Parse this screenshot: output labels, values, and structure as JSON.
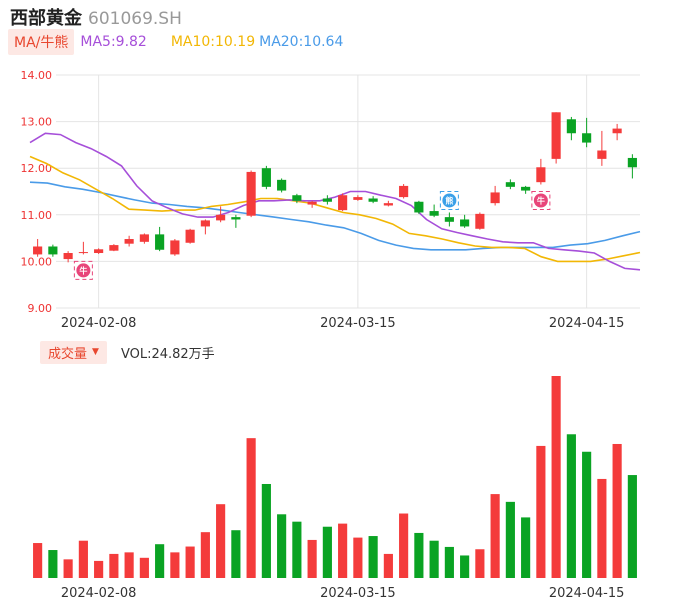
{
  "header": {
    "name": "西部黄金",
    "code": "601069.SH"
  },
  "ma": {
    "button_label": "MA/牛熊",
    "ma5": "MA5:9.82",
    "ma10": "MA10:10.19",
    "ma20": "MA20:10.64",
    "colors": {
      "ma5": "#a64fd9",
      "ma10": "#f2b705",
      "ma20": "#4a9be8"
    }
  },
  "volume": {
    "button_label": "成交量",
    "value_text": "VOL:24.82万手"
  },
  "colors": {
    "up": "#f43b3b",
    "down": "#0aa323",
    "bull_badge": "#e8457a",
    "bear_badge": "#3aa0e8"
  },
  "chart_data": {
    "type": "candlestick",
    "ylim": [
      9.0,
      14.0
    ],
    "yticks": [
      "14.00",
      "13.00",
      "12.00",
      "11.00",
      "10.00",
      "9.00"
    ],
    "xticks": [
      {
        "index": 4,
        "label": "2024-02-08"
      },
      {
        "index": 21,
        "label": "2024-03-15"
      },
      {
        "index": 36,
        "label": "2024-04-15"
      }
    ],
    "candles": [
      {
        "o": 10.15,
        "c": 10.32,
        "h": 10.48,
        "l": 10.1,
        "v": 90
      },
      {
        "o": 10.32,
        "c": 10.15,
        "h": 10.36,
        "l": 10.1,
        "v": 72
      },
      {
        "o": 10.05,
        "c": 10.18,
        "h": 10.22,
        "l": 9.98,
        "v": 48
      },
      {
        "o": 10.2,
        "c": 10.2,
        "h": 10.42,
        "l": 10.15,
        "v": 96
      },
      {
        "o": 10.18,
        "c": 10.26,
        "h": 10.28,
        "l": 10.16,
        "v": 44
      },
      {
        "o": 10.23,
        "c": 10.35,
        "h": 10.37,
        "l": 10.22,
        "v": 62
      },
      {
        "o": 10.38,
        "c": 10.48,
        "h": 10.55,
        "l": 10.32,
        "v": 66
      },
      {
        "o": 10.42,
        "c": 10.58,
        "h": 10.6,
        "l": 10.38,
        "v": 52
      },
      {
        "o": 10.58,
        "c": 10.25,
        "h": 10.74,
        "l": 10.22,
        "v": 87
      },
      {
        "o": 10.15,
        "c": 10.45,
        "h": 10.48,
        "l": 10.12,
        "v": 66
      },
      {
        "o": 10.4,
        "c": 10.68,
        "h": 10.7,
        "l": 10.38,
        "v": 81
      },
      {
        "o": 10.75,
        "c": 10.88,
        "h": 10.9,
        "l": 10.58,
        "v": 118
      },
      {
        "o": 10.88,
        "c": 11.0,
        "h": 11.18,
        "l": 10.84,
        "v": 190
      },
      {
        "o": 10.95,
        "c": 10.9,
        "h": 11.0,
        "l": 10.72,
        "v": 123
      },
      {
        "o": 10.98,
        "c": 11.92,
        "h": 11.95,
        "l": 10.95,
        "v": 360
      },
      {
        "o": 12.0,
        "c": 11.6,
        "h": 12.05,
        "l": 11.55,
        "v": 242
      },
      {
        "o": 11.75,
        "c": 11.52,
        "h": 11.78,
        "l": 11.48,
        "v": 164
      },
      {
        "o": 11.42,
        "c": 11.3,
        "h": 11.45,
        "l": 11.25,
        "v": 145
      },
      {
        "o": 11.22,
        "c": 11.28,
        "h": 11.3,
        "l": 11.15,
        "v": 98
      },
      {
        "o": 11.35,
        "c": 11.28,
        "h": 11.42,
        "l": 11.22,
        "v": 132
      },
      {
        "o": 11.1,
        "c": 11.42,
        "h": 11.46,
        "l": 11.08,
        "v": 140
      },
      {
        "o": 11.32,
        "c": 11.38,
        "h": 11.42,
        "l": 11.3,
        "v": 104
      },
      {
        "o": 11.35,
        "c": 11.28,
        "h": 11.4,
        "l": 11.25,
        "v": 108
      },
      {
        "o": 11.2,
        "c": 11.25,
        "h": 11.3,
        "l": 11.18,
        "v": 62
      },
      {
        "o": 11.38,
        "c": 11.62,
        "h": 11.66,
        "l": 11.35,
        "v": 166
      },
      {
        "o": 11.28,
        "c": 11.05,
        "h": 11.3,
        "l": 11.02,
        "v": 116
      },
      {
        "o": 11.08,
        "c": 10.98,
        "h": 11.22,
        "l": 10.95,
        "v": 96
      },
      {
        "o": 10.95,
        "c": 10.85,
        "h": 11.05,
        "l": 10.75,
        "v": 80
      },
      {
        "o": 10.9,
        "c": 10.75,
        "h": 11.0,
        "l": 10.72,
        "v": 58
      },
      {
        "o": 10.7,
        "c": 11.02,
        "h": 11.05,
        "l": 10.68,
        "v": 74
      },
      {
        "o": 11.25,
        "c": 11.48,
        "h": 11.62,
        "l": 11.2,
        "v": 216
      },
      {
        "o": 11.7,
        "c": 11.6,
        "h": 11.76,
        "l": 11.55,
        "v": 196
      },
      {
        "o": 11.6,
        "c": 11.52,
        "h": 11.62,
        "l": 11.45,
        "v": 156
      },
      {
        "o": 11.7,
        "c": 12.02,
        "h": 12.2,
        "l": 11.65,
        "v": 340
      },
      {
        "o": 12.2,
        "c": 13.2,
        "h": 13.2,
        "l": 12.1,
        "v": 520
      },
      {
        "o": 13.05,
        "c": 12.75,
        "h": 13.1,
        "l": 12.6,
        "v": 370
      },
      {
        "o": 12.75,
        "c": 12.55,
        "h": 13.08,
        "l": 12.45,
        "v": 325
      },
      {
        "o": 12.2,
        "c": 12.38,
        "h": 12.8,
        "l": 12.05,
        "v": 255
      },
      {
        "o": 12.75,
        "c": 12.85,
        "h": 12.95,
        "l": 12.6,
        "v": 345
      },
      {
        "o": 12.22,
        "c": 12.02,
        "h": 12.3,
        "l": 11.78,
        "v": 265
      }
    ],
    "ma5_line": [
      12.55,
      12.75,
      12.72,
      12.55,
      12.42,
      12.25,
      12.05,
      11.62,
      11.3,
      11.15,
      11.02,
      10.95,
      10.95,
      11.05,
      11.2,
      11.3,
      11.3,
      11.32,
      11.3,
      11.3,
      11.38,
      11.5,
      11.5,
      11.42,
      11.35,
      11.2,
      10.9,
      10.7,
      10.62,
      10.55,
      10.48,
      10.42,
      10.4,
      10.4,
      10.28,
      10.25,
      10.22,
      10.18,
      10.0,
      9.85,
      9.82
    ],
    "ma10_line": [
      12.25,
      12.1,
      11.9,
      11.75,
      11.55,
      11.35,
      11.12,
      11.1,
      11.08,
      11.1,
      11.1,
      11.18,
      11.22,
      11.28,
      11.35,
      11.35,
      11.3,
      11.25,
      11.15,
      11.05,
      11.0,
      10.92,
      10.8,
      10.6,
      10.55,
      10.48,
      10.4,
      10.33,
      10.3,
      10.3,
      10.28,
      10.1,
      10.0,
      10.0,
      10.0,
      10.05,
      10.12,
      10.19
    ],
    "ma20_line": [
      11.7,
      11.68,
      11.6,
      11.55,
      11.48,
      11.4,
      11.32,
      11.25,
      11.22,
      11.18,
      11.15,
      11.1,
      11.05,
      11.0,
      10.95,
      10.9,
      10.85,
      10.78,
      10.72,
      10.6,
      10.45,
      10.35,
      10.28,
      10.25,
      10.25,
      10.25,
      10.28,
      10.3,
      10.3,
      10.3,
      10.3,
      10.35,
      10.38,
      10.45,
      10.55,
      10.64
    ],
    "signals": [
      {
        "index": 3,
        "kind": "bull",
        "label": "牛"
      },
      {
        "index": 27,
        "kind": "bear",
        "label": "熊"
      },
      {
        "index": 33,
        "kind": "bull",
        "label": "牛"
      }
    ]
  }
}
